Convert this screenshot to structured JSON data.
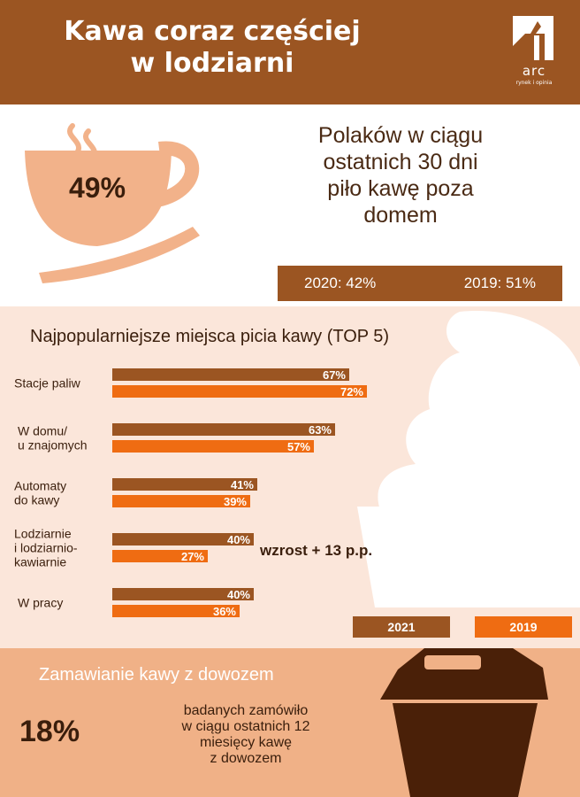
{
  "header": {
    "title_line1": "Kawa coraz częściej",
    "title_line2": "w lodziarni",
    "logo_word": "arc",
    "logo_tagline": "rynek i opinia",
    "logo_icon": "arc-logo-icon"
  },
  "stat49": {
    "value": "49%",
    "text_line1": "Polaków w ciągu",
    "text_line2": "ostatnich 30 dni",
    "text_line3": "piło kawę poza",
    "text_line4": "domem",
    "year_2020": "2020: 42%",
    "year_2019": "2019: 51%",
    "icon": "coffee-cup-icon"
  },
  "chart_data": {
    "type": "bar",
    "orientation": "horizontal",
    "title": "Najpopularniejsze miejsca picia kawy (TOP 5)",
    "categories": [
      [
        "Stacje paliw"
      ],
      [
        "W domu/",
        "u znajomych"
      ],
      [
        "Automaty",
        "do kawy"
      ],
      [
        "Lodziarnie",
        "i lodziarnio-",
        "kawiarnie"
      ],
      [
        "W pracy"
      ]
    ],
    "series": [
      {
        "name": "2021",
        "values": [
          67,
          63,
          41,
          40,
          40
        ],
        "labels": [
          "67%",
          "63%",
          "41%",
          "40%",
          "40%"
        ],
        "color": "#9b5522"
      },
      {
        "name": "2019",
        "values": [
          72,
          57,
          39,
          27,
          36
        ],
        "labels": [
          "72%",
          "57%",
          "39%",
          "27%",
          "36%"
        ],
        "color": "#ef6c12"
      }
    ],
    "xlim": [
      0,
      100
    ],
    "annotation": "wzrost + 13 p.p.",
    "legend": "bottom-right",
    "grid": false
  },
  "legend": {
    "l2021": "2021",
    "l2019": "2019"
  },
  "delivery": {
    "title": "Zamawianie kawy z dowozem",
    "value": "18%",
    "text_line1": "badanych zamówiło",
    "text_line2": "w ciągu ostatnich 12",
    "text_line3": "miesięcy kawę",
    "text_line4": "z dowozem",
    "icon": "takeaway-cup-icon"
  },
  "colors": {
    "brown": "#9b5522",
    "orange": "#ef6c12",
    "peach": "#f0b187",
    "light_peach": "#fbe6da",
    "dark_brown": "#4a2008",
    "cup": "#f2b28a"
  }
}
